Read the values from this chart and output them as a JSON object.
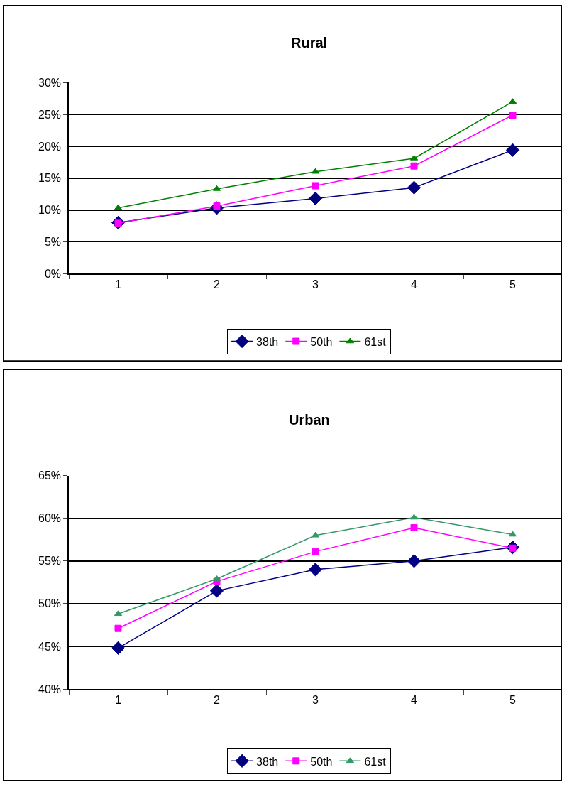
{
  "chart_data": [
    {
      "type": "line",
      "title": "Rural",
      "categories": [
        "1",
        "2",
        "3",
        "4",
        "5"
      ],
      "series": [
        {
          "name": "38th",
          "color": "#000080",
          "marker": "diamond",
          "values": [
            8.0,
            10.3,
            11.8,
            13.5,
            19.4
          ]
        },
        {
          "name": "50th",
          "color": "#ff00ff",
          "marker": "square",
          "values": [
            7.9,
            10.6,
            13.8,
            16.9,
            24.9
          ]
        },
        {
          "name": "61st",
          "color": "#008000",
          "marker": "triangle",
          "values": [
            10.3,
            13.3,
            16.0,
            18.1,
            27.0
          ]
        }
      ],
      "ylim": [
        0,
        30
      ],
      "yticks": [
        {
          "value": 0,
          "label": "0%"
        },
        {
          "value": 5,
          "label": "5%"
        },
        {
          "value": 10,
          "label": "10%"
        },
        {
          "value": 15,
          "label": "15%"
        },
        {
          "value": 20,
          "label": "20%"
        },
        {
          "value": 25,
          "label": "25%"
        },
        {
          "value": 30,
          "label": "30%"
        }
      ],
      "grid": "y",
      "legend": "bottom",
      "line_style": "solid"
    },
    {
      "type": "line",
      "title": "Urban",
      "categories": [
        "1",
        "2",
        "3",
        "4",
        "5"
      ],
      "series": [
        {
          "name": "38th",
          "color": "#000080",
          "marker": "diamond",
          "values": [
            44.8,
            51.5,
            54.0,
            55.0,
            56.6
          ]
        },
        {
          "name": "50th",
          "color": "#ff00ff",
          "marker": "square",
          "values": [
            47.1,
            52.6,
            56.1,
            58.9,
            56.5
          ]
        },
        {
          "name": "61st",
          "color": "#339966",
          "marker": "triangle",
          "values": [
            48.8,
            52.9,
            58.0,
            60.1,
            58.1
          ]
        }
      ],
      "ylim": [
        40,
        65
      ],
      "yticks": [
        {
          "value": 40,
          "label": "40%"
        },
        {
          "value": 45,
          "label": "45%"
        },
        {
          "value": 50,
          "label": "50%"
        },
        {
          "value": 55,
          "label": "55%"
        },
        {
          "value": 60,
          "label": "60%"
        },
        {
          "value": 65,
          "label": "65%"
        }
      ],
      "grid": "y",
      "legend": "bottom",
      "line_style": "solid"
    }
  ]
}
